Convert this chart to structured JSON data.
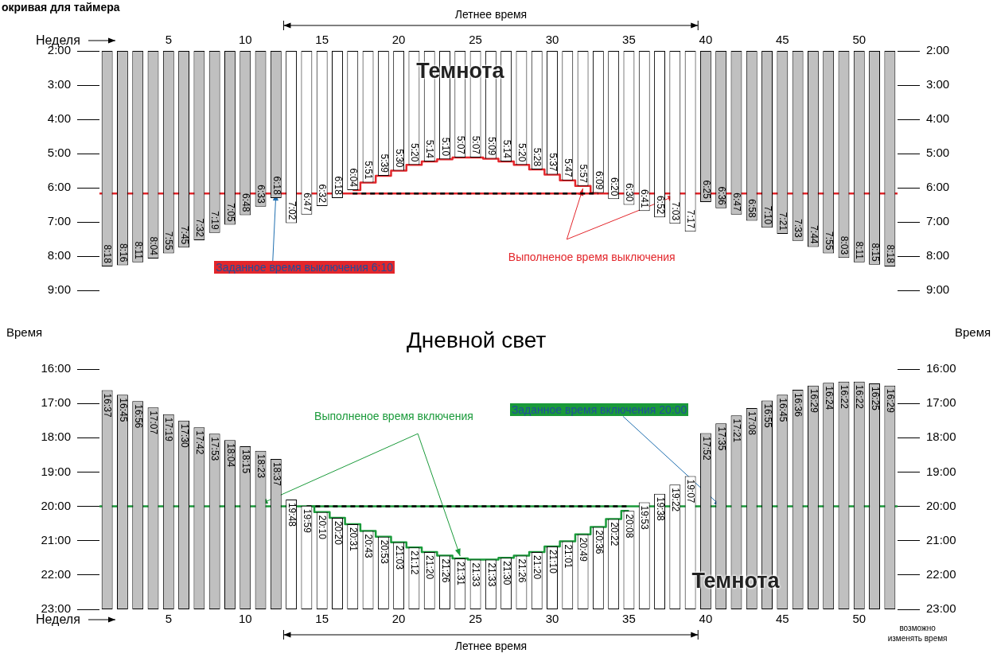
{
  "chart_data": [
    {
      "type": "bar",
      "title": "окривая для таймера",
      "xlabel": "Неделя",
      "categories": [
        null,
        null,
        null,
        null,
        "5",
        null,
        null,
        null,
        null,
        "10",
        null,
        null,
        null,
        null,
        "15",
        null,
        null,
        null,
        null,
        "20",
        null,
        null,
        null,
        null,
        "25",
        null,
        null,
        null,
        null,
        "30",
        null,
        null,
        null,
        null,
        "35",
        null,
        null,
        null,
        null,
        "40",
        null,
        null,
        null,
        null,
        "45",
        null,
        null,
        null,
        null,
        "50",
        null,
        null
      ],
      "series": [
        {
          "type": "bar",
          "colors": [
            "#c0c0c0",
            "#c0c0c0",
            "#c0c0c0",
            "#c0c0c0",
            "#c0c0c0",
            "#c0c0c0",
            "#c0c0c0",
            "#c0c0c0",
            "#c0c0c0",
            "#c0c0c0",
            "#c0c0c0",
            "#c0c0c0",
            "#ffffff",
            "#ffffff",
            "#ffffff",
            "#ffffff",
            "#ffffff",
            "#ffffff",
            "#ffffff",
            "#ffffff",
            "#ffffff",
            "#ffffff",
            "#ffffff",
            "#ffffff",
            "#ffffff",
            "#ffffff",
            "#ffffff",
            "#ffffff",
            "#ffffff",
            "#ffffff",
            "#ffffff",
            "#ffffff",
            "#ffffff",
            "#ffffff",
            "#ffffff",
            "#ffffff",
            "#ffffff",
            "#ffffff",
            "#ffffff",
            "#c0c0c0",
            "#c0c0c0",
            "#c0c0c0",
            "#c0c0c0",
            "#c0c0c0",
            "#c0c0c0",
            "#c0c0c0",
            "#c0c0c0",
            "#c0c0c0",
            "#c0c0c0",
            "#c0c0c0",
            "#c0c0c0",
            "#c0c0c0"
          ],
          "values": [
            8.3,
            8.267,
            8.183,
            8.067,
            7.917,
            7.75,
            7.533,
            7.317,
            7.083,
            6.8,
            6.55,
            6.3,
            7.033,
            6.783,
            6.533,
            6.3,
            6.067,
            5.85,
            5.65,
            5.5,
            5.333,
            5.233,
            5.167,
            5.117,
            5.117,
            5.15,
            5.233,
            5.333,
            5.467,
            5.617,
            5.783,
            5.95,
            6.15,
            6.333,
            6.5,
            6.683,
            6.867,
            7.05,
            7.283,
            6.417,
            6.6,
            6.783,
            6.967,
            7.167,
            7.35,
            7.55,
            7.733,
            7.917,
            8.05,
            8.183,
            8.25,
            8.3
          ],
          "value_labels": [
            "8:18",
            "8:16",
            "8:11",
            "8:04",
            "7:55",
            "7:45",
            "7:32",
            "7:19",
            "7:05",
            "6:48",
            "6:33",
            "6:18",
            "7:02",
            "6:47",
            "6:32",
            "6:18",
            "6:04",
            "5:51",
            "5:39",
            "5:30",
            "5:20",
            "5:14",
            "5:10",
            "5:07",
            "5:07",
            "5:09",
            "5:14",
            "5:20",
            "5:28",
            "5:37",
            "5:47",
            "5:57",
            "6:09",
            "6:20",
            "6:30",
            "6:41",
            "6:52",
            "7:03",
            "7:17",
            "6:25",
            "6:36",
            "6:47",
            "6:58",
            "7:10",
            "7:21",
            "7:33",
            "7:44",
            "7:55",
            "8:03",
            "8:11",
            "8:15",
            "8:18"
          ]
        },
        {
          "type": "line",
          "color": "#000000",
          "line_style": "dashed",
          "values": [
            null,
            null,
            null,
            null,
            null,
            null,
            null,
            null,
            null,
            null,
            null,
            null,
            null,
            null,
            null,
            null,
            6.167,
            6.167,
            6.167,
            6.167,
            6.167,
            6.167,
            6.167,
            6.167,
            6.167,
            6.167,
            6.167,
            6.167,
            6.167,
            6.167,
            6.167,
            6.167,
            6.167,
            null,
            null,
            null,
            null,
            null,
            null,
            null,
            null,
            null,
            null,
            null,
            null,
            null,
            null,
            null,
            null,
            null,
            null,
            null
          ]
        },
        {
          "type": "step",
          "name": "Выполненое время выключения",
          "color": "#e3262b",
          "values": [
            null,
            null,
            null,
            null,
            null,
            null,
            null,
            null,
            null,
            null,
            null,
            null,
            null,
            null,
            null,
            null,
            6.067,
            5.85,
            5.65,
            5.5,
            5.333,
            5.233,
            5.167,
            5.117,
            5.117,
            5.15,
            5.233,
            5.333,
            5.467,
            5.617,
            5.783,
            5.95,
            6.15,
            null,
            null,
            null,
            null,
            null,
            null,
            null,
            null,
            null,
            null,
            null,
            null,
            null,
            null,
            null,
            null,
            null,
            null,
            null
          ]
        }
      ],
      "ylim": [
        9,
        2
      ],
      "yticks": [
        {
          "value": 2,
          "label": "2:00"
        },
        {
          "value": 3,
          "label": "3:00"
        },
        {
          "value": 4,
          "label": "4:00"
        },
        {
          "value": 5,
          "label": "5:00"
        },
        {
          "value": 6,
          "label": "6:00"
        },
        {
          "value": 7,
          "label": "7:00"
        },
        {
          "value": 8,
          "label": "8:00"
        },
        {
          "value": 9,
          "label": "9:00"
        }
      ],
      "y2lim": [
        9,
        2
      ],
      "y2ticks": [
        {
          "value": 2,
          "label": "2:00"
        },
        {
          "value": 3,
          "label": "3:00"
        },
        {
          "value": 4,
          "label": "4:00"
        },
        {
          "value": 5,
          "label": "5:00"
        },
        {
          "value": 6,
          "label": "6:00"
        },
        {
          "value": 7,
          "label": "7:00"
        },
        {
          "value": 8,
          "label": "8:00"
        },
        {
          "value": 9,
          "label": "9:00"
        }
      ],
      "ref_lines": [
        {
          "axis": "y",
          "value": 6.167,
          "label": "Заданное время выключения 6:10",
          "color": "#e3262b"
        }
      ],
      "annotations": [
        "Летнее время",
        "Темнота"
      ],
      "grid": false,
      "legend": false,
      "marker": "none"
    },
    {
      "type": "bar",
      "xlabel": "Неделя",
      "ylabel": "Время",
      "y2label": "Время",
      "categories": [
        null,
        null,
        null,
        null,
        "5",
        null,
        null,
        null,
        null,
        "10",
        null,
        null,
        null,
        null,
        "15",
        null,
        null,
        null,
        null,
        "20",
        null,
        null,
        null,
        null,
        "25",
        null,
        null,
        null,
        null,
        "30",
        null,
        null,
        null,
        null,
        "35",
        null,
        null,
        null,
        null,
        "40",
        null,
        null,
        null,
        null,
        "45",
        null,
        null,
        null,
        null,
        "50",
        null,
        null
      ],
      "series": [
        {
          "type": "bar",
          "colors": [
            "#c0c0c0",
            "#c0c0c0",
            "#c0c0c0",
            "#c0c0c0",
            "#c0c0c0",
            "#c0c0c0",
            "#c0c0c0",
            "#c0c0c0",
            "#c0c0c0",
            "#c0c0c0",
            "#c0c0c0",
            "#c0c0c0",
            "#ffffff",
            "#ffffff",
            "#ffffff",
            "#ffffff",
            "#ffffff",
            "#ffffff",
            "#ffffff",
            "#ffffff",
            "#ffffff",
            "#ffffff",
            "#ffffff",
            "#ffffff",
            "#ffffff",
            "#ffffff",
            "#ffffff",
            "#ffffff",
            "#ffffff",
            "#ffffff",
            "#ffffff",
            "#ffffff",
            "#ffffff",
            "#ffffff",
            "#ffffff",
            "#ffffff",
            "#ffffff",
            "#ffffff",
            "#ffffff",
            "#c0c0c0",
            "#c0c0c0",
            "#c0c0c0",
            "#c0c0c0",
            "#c0c0c0",
            "#c0c0c0",
            "#c0c0c0",
            "#c0c0c0",
            "#c0c0c0",
            "#c0c0c0",
            "#c0c0c0",
            "#c0c0c0",
            "#c0c0c0"
          ],
          "base": [
            23,
            23,
            23,
            23,
            23,
            23,
            23,
            23,
            23,
            23,
            23,
            23,
            23,
            23,
            23,
            23,
            23,
            23,
            23,
            23,
            23,
            23,
            23,
            23,
            23,
            23,
            23,
            23,
            23,
            23,
            23,
            23,
            23,
            23,
            23,
            23,
            23,
            23,
            23,
            23,
            23,
            23,
            23,
            23,
            23,
            23,
            23,
            23,
            23,
            23,
            23,
            23
          ],
          "values": [
            -6.383,
            -6.25,
            -6.067,
            -5.883,
            -5.683,
            -5.5,
            -5.3,
            -5.117,
            -4.933,
            -4.75,
            -4.617,
            -4.383,
            -3.2,
            -3.017,
            -2.833,
            -2.667,
            -2.483,
            -2.283,
            -2.117,
            -1.95,
            -1.8,
            -1.667,
            -1.567,
            -1.483,
            -1.45,
            -1.45,
            -1.5,
            -1.567,
            -1.667,
            -1.833,
            -1.983,
            -2.183,
            -2.4,
            -2.633,
            -2.867,
            -3.117,
            -3.367,
            -3.633,
            -3.883,
            -5.133,
            -5.417,
            -5.65,
            -5.867,
            -6.083,
            -6.25,
            -6.4,
            -6.517,
            -6.6,
            -6.633,
            -6.633,
            -6.583,
            -6.517
          ],
          "value_labels": [
            "16:37",
            "16:45",
            "16:56",
            "17:07",
            "17:19",
            "17:30",
            "17:42",
            "17:53",
            "18:04",
            "18:15",
            "18:23",
            "18:37",
            "19:48",
            "19:59",
            "20:10",
            "20:20",
            "20:31",
            "20:43",
            "20:53",
            "21:03",
            "21:12",
            "21:20",
            "21:26",
            "21:31",
            "21:33",
            "21:33",
            "21:30",
            "21:26",
            "21:20",
            "21:10",
            "21:01",
            "20:49",
            "20:36",
            "20:22",
            "20:08",
            "19:53",
            "19:38",
            "19:22",
            "19:07",
            "17:52",
            "17:35",
            "17:21",
            "17:08",
            "16:55",
            "16:45",
            "16:36",
            "16:29",
            "16:24",
            "16:22",
            "16:22",
            "16:25",
            "16:29"
          ]
        },
        {
          "type": "line",
          "color": "#000000",
          "line_style": "dashed",
          "values": [
            null,
            null,
            null,
            null,
            null,
            null,
            null,
            null,
            null,
            null,
            null,
            null,
            null,
            20,
            20,
            20,
            20,
            20,
            20,
            20,
            20,
            20,
            20,
            20,
            20,
            20,
            20,
            20,
            20,
            20,
            20,
            20,
            20,
            20,
            20,
            null,
            null,
            null,
            null,
            null,
            null,
            null,
            null,
            null,
            null,
            null,
            null,
            null,
            null,
            null,
            null,
            null
          ]
        },
        {
          "type": "step",
          "name": "Выполненое время включения",
          "color": "#1a9a3a",
          "values": [
            null,
            null,
            null,
            null,
            null,
            null,
            null,
            null,
            null,
            null,
            null,
            null,
            null,
            20,
            20.167,
            20.333,
            20.517,
            20.717,
            20.883,
            21.05,
            21.2,
            21.333,
            21.433,
            21.517,
            21.55,
            21.55,
            21.5,
            21.433,
            21.333,
            21.167,
            21.017,
            20.817,
            20.6,
            20.367,
            20.133,
            null,
            null,
            null,
            null,
            null,
            null,
            null,
            null,
            null,
            null,
            null,
            null,
            null,
            null,
            null,
            null,
            null
          ]
        }
      ],
      "ylim": [
        23,
        16
      ],
      "yticks": [
        {
          "value": 16,
          "label": "16:00"
        },
        {
          "value": 17,
          "label": "17:00"
        },
        {
          "value": 18,
          "label": "18:00"
        },
        {
          "value": 19,
          "label": "19:00"
        },
        {
          "value": 20,
          "label": "20:00"
        },
        {
          "value": 21,
          "label": "21:00"
        },
        {
          "value": 22,
          "label": "22:00"
        },
        {
          "value": 23,
          "label": "23:00"
        }
      ],
      "y2lim": [
        23,
        16
      ],
      "y2ticks": [
        {
          "value": 16,
          "label": "16:00"
        },
        {
          "value": 17,
          "label": "17:00"
        },
        {
          "value": 18,
          "label": "18:00"
        },
        {
          "value": 19,
          "label": "19:00"
        },
        {
          "value": 20,
          "label": "20:00"
        },
        {
          "value": 21,
          "label": "21:00"
        },
        {
          "value": 22,
          "label": "22:00"
        },
        {
          "value": 23,
          "label": "23:00"
        }
      ],
      "ref_lines": [
        {
          "axis": "y",
          "value": 20,
          "label": "Заданное время включения 20:00",
          "color": "#1a9a3a"
        }
      ],
      "annotations": [
        "Дневной свет",
        "Летнее время",
        "Темнота",
        "возможно изменять время"
      ],
      "grid": false,
      "legend": false,
      "marker": "none"
    }
  ]
}
